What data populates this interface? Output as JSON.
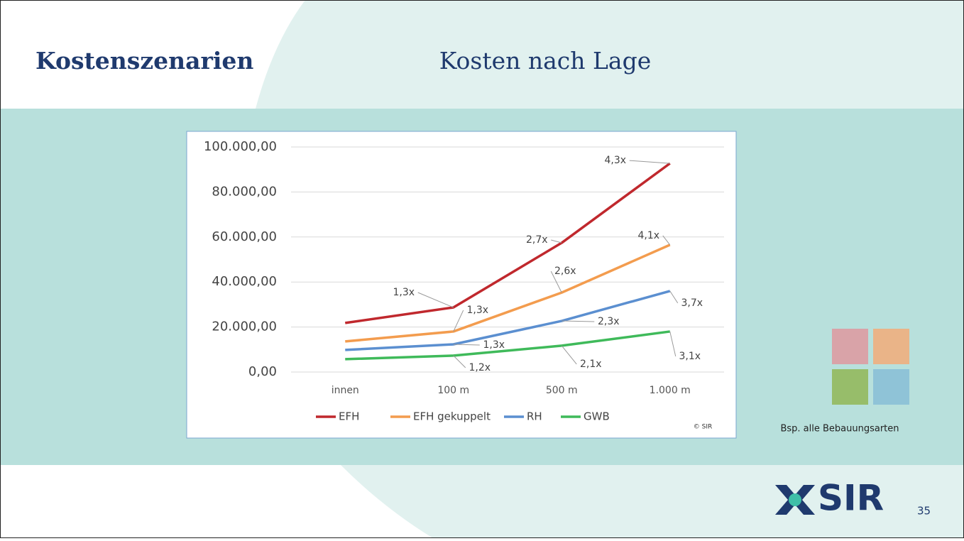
{
  "header": {
    "title": "Kostenszenarien",
    "subtitle": "Kosten nach Lage"
  },
  "chart_data": {
    "type": "line",
    "categories": [
      "innen",
      "100 m",
      "500 m",
      "1.000 m"
    ],
    "series": [
      {
        "name": "EFH",
        "color": "#c0282d",
        "values": [
          21800,
          28700,
          57400,
          92700
        ],
        "annotations": [
          null,
          "1,3x",
          "2,7x",
          "4,3x"
        ]
      },
      {
        "name": "EFH gekuppelt",
        "color": "#f39c4e",
        "values": [
          13600,
          18000,
          35300,
          56500
        ],
        "annotations": [
          null,
          "1,3x",
          "2,6x",
          "4,1x"
        ]
      },
      {
        "name": "RH",
        "color": "#5b8fd0",
        "values": [
          9800,
          12300,
          22700,
          36000
        ],
        "annotations": [
          null,
          "1,3x",
          "2,3x",
          "3,7x"
        ]
      },
      {
        "name": "GWB",
        "color": "#3fba5a",
        "values": [
          5700,
          7300,
          11700,
          18000
        ],
        "annotations": [
          null,
          "1,2x",
          "2,1x",
          "3,1x"
        ]
      }
    ],
    "ylim": [
      0,
      100000
    ],
    "yticks": [
      {
        "value": 0,
        "label": "0,00"
      },
      {
        "value": 20000,
        "label": "20.000,00"
      },
      {
        "value": 40000,
        "label": "40.000,00"
      },
      {
        "value": 60000,
        "label": "60.000,00"
      },
      {
        "value": 80000,
        "label": "80.000,00"
      },
      {
        "value": 100000,
        "label": "100.000,00"
      }
    ],
    "grid": true,
    "legend": "bottom",
    "copyright": "© SIR"
  },
  "side": {
    "caption": "Bsp. alle Bebauungsarten"
  },
  "footer": {
    "logo": "SIR",
    "page": "35"
  }
}
